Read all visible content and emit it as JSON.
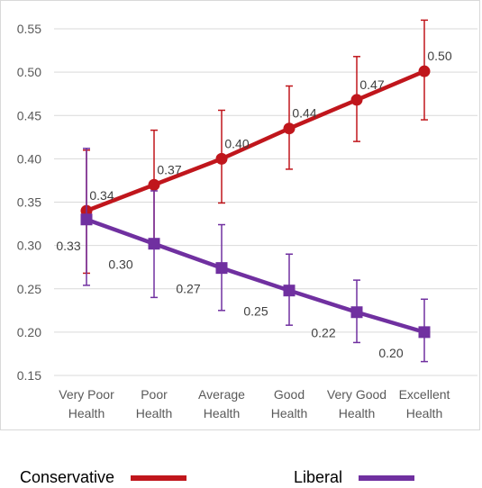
{
  "chart_data": {
    "type": "line",
    "categories": [
      [
        "Very Poor",
        "Health"
      ],
      [
        "Poor",
        "Health"
      ],
      [
        "Average",
        "Health"
      ],
      [
        "Good",
        "Health"
      ],
      [
        "Very Good",
        "Health"
      ],
      [
        "Excellent",
        "Health"
      ]
    ],
    "ylim": [
      0.15,
      0.55
    ],
    "yticks": [
      "0.15",
      "0.20",
      "0.25",
      "0.30",
      "0.35",
      "0.40",
      "0.45",
      "0.50",
      "0.55"
    ],
    "grid": true,
    "legend_position": "bottom",
    "series": [
      {
        "name": "Conservative",
        "color": "#c0161c",
        "marker": "circle",
        "values": [
          0.34,
          0.37,
          0.4,
          0.435,
          0.468,
          0.501
        ],
        "labels": [
          "0.34",
          "0.37",
          "0.40",
          "0.44",
          "0.47",
          "0.50"
        ],
        "error_low": [
          0.268,
          0.3,
          0.349,
          0.388,
          0.42,
          0.445
        ],
        "error_high": [
          0.41,
          0.433,
          0.456,
          0.484,
          0.518,
          0.56
        ]
      },
      {
        "name": "Liberal",
        "color": "#7030a0",
        "marker": "square",
        "values": [
          0.33,
          0.302,
          0.274,
          0.248,
          0.223,
          0.2
        ],
        "labels": [
          "0.33",
          "0.30",
          "0.27",
          "0.25",
          "0.22",
          "0.20"
        ],
        "error_low": [
          0.254,
          0.24,
          0.225,
          0.208,
          0.188,
          0.166
        ],
        "error_high": [
          0.412,
          0.363,
          0.324,
          0.29,
          0.26,
          0.238
        ]
      }
    ]
  }
}
